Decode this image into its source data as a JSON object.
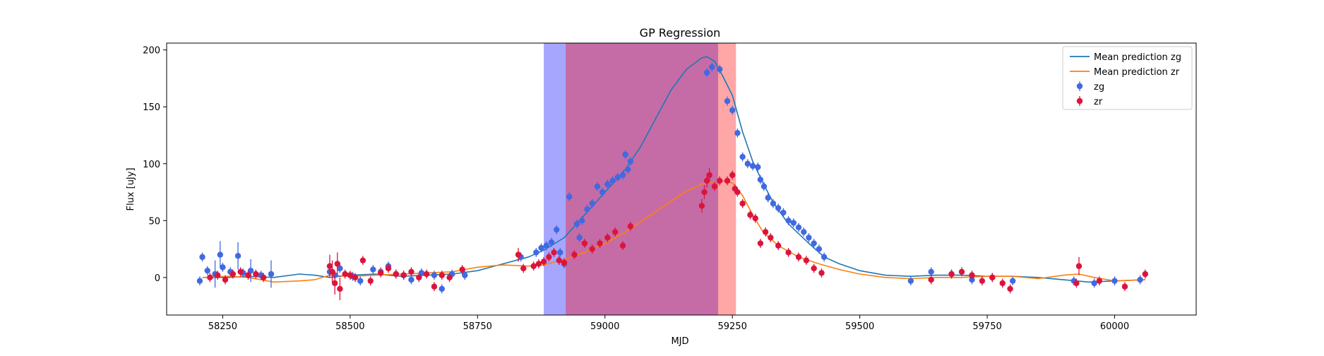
{
  "chart_data": {
    "type": "scatter",
    "title": "GP Regression",
    "xlabel": "MJD",
    "ylabel": "Flux [uJy]",
    "xlim": [
      58140,
      60160
    ],
    "ylim": [
      -33,
      206
    ],
    "xticks": [
      58250,
      58500,
      58750,
      59000,
      59250,
      59500,
      59750,
      60000
    ],
    "yticks": [
      0,
      50,
      100,
      150,
      200
    ],
    "grid": false,
    "legend_position": "top-right",
    "colors": {
      "line_zg": "#1f77b4",
      "line_zr": "#ff7f0e",
      "points_zg": "#4169e1",
      "points_zr": "#dc143c",
      "band_zg": "#0000ff",
      "band_zr": "#ff0000"
    },
    "shaded_regions": [
      {
        "x0": 58880,
        "x1": 59222,
        "color": "#0000ff",
        "opacity": 0.35
      },
      {
        "x0": 58923,
        "x1": 59257,
        "color": "#ff0000",
        "opacity": 0.35
      }
    ],
    "series": [
      {
        "name": "Mean prediction zg",
        "kind": "line",
        "color": "#1f77b4",
        "x": [
          58210,
          58260,
          58300,
          58350,
          58400,
          58430,
          58460,
          58500,
          58550,
          58600,
          58650,
          58700,
          58750,
          58800,
          58850,
          58880,
          58920,
          58950,
          58980,
          59010,
          59040,
          59070,
          59100,
          59130,
          59160,
          59190,
          59200,
          59215,
          59230,
          59250,
          59270,
          59290,
          59310,
          59330,
          59360,
          59400,
          59430,
          59460,
          59500,
          59550,
          59600,
          59650,
          59700,
          59750,
          59800,
          59850,
          59900,
          59950,
          60000,
          60060
        ],
        "y": [
          0,
          0,
          1,
          0,
          3,
          2,
          0,
          2,
          3,
          1,
          2,
          3,
          6,
          12,
          18,
          24,
          35,
          50,
          65,
          80,
          95,
          115,
          140,
          165,
          183,
          193,
          194,
          190,
          178,
          160,
          128,
          102,
          83,
          66,
          47,
          30,
          18,
          12,
          6,
          2,
          1,
          2,
          2,
          1,
          1,
          0,
          -2,
          -4,
          -3,
          -2
        ]
      },
      {
        "name": "Mean prediction zr",
        "kind": "line",
        "color": "#ff7f0e",
        "x": [
          58210,
          58260,
          58300,
          58350,
          58400,
          58430,
          58460,
          58500,
          58550,
          58600,
          58650,
          58700,
          58750,
          58800,
          58850,
          58880,
          58920,
          58960,
          59000,
          59040,
          59080,
          59120,
          59160,
          59190,
          59210,
          59230,
          59250,
          59270,
          59290,
          59310,
          59340,
          59380,
          59420,
          59460,
          59500,
          59550,
          59600,
          59650,
          59700,
          59750,
          59800,
          59850,
          59900,
          59930,
          59960,
          60000,
          60060
        ],
        "y": [
          0,
          1,
          0,
          -4,
          -3,
          -2,
          2,
          1,
          2,
          3,
          4,
          5,
          9,
          11,
          10,
          11,
          16,
          22,
          30,
          40,
          52,
          64,
          76,
          82,
          84,
          85,
          83,
          72,
          55,
          40,
          28,
          18,
          12,
          7,
          3,
          0,
          -1,
          0,
          0,
          1,
          1,
          -1,
          2,
          3,
          0,
          -3,
          -2
        ]
      },
      {
        "name": "zg",
        "kind": "errorbar-scatter",
        "color": "#4169e1",
        "x": [
          58205,
          58210,
          58220,
          58235,
          58245,
          58250,
          58265,
          58280,
          58290,
          58305,
          58325,
          58345,
          58460,
          58470,
          58480,
          58505,
          58520,
          58545,
          58560,
          58575,
          58590,
          58605,
          58620,
          58640,
          58665,
          58680,
          58700,
          58725,
          58835,
          58865,
          58875,
          58885,
          58895,
          58905,
          58912,
          58920,
          58930,
          58945,
          58950,
          58955,
          58965,
          58975,
          58985,
          58995,
          59005,
          59015,
          59025,
          59035,
          59040,
          59045,
          59050,
          59200,
          59210,
          59225,
          59240,
          59250,
          59260,
          59270,
          59280,
          59290,
          59300,
          59305,
          59312,
          59320,
          59330,
          59340,
          59350,
          59360,
          59370,
          59380,
          59390,
          59400,
          59410,
          59420,
          59430,
          59600,
          59640,
          59680,
          59720,
          59760,
          59800,
          59920,
          59960,
          60000,
          60050
        ],
        "y": [
          -3,
          18,
          6,
          3,
          20,
          9,
          5,
          19,
          4,
          6,
          2,
          3,
          5,
          2,
          8,
          1,
          -3,
          7,
          5,
          10,
          3,
          2,
          -2,
          4,
          2,
          -10,
          3,
          2,
          18,
          22,
          26,
          28,
          31,
          42,
          22,
          12,
          71,
          47,
          35,
          50,
          60,
          65,
          80,
          75,
          82,
          85,
          88,
          90,
          108,
          95,
          102,
          180,
          185,
          183,
          155,
          147,
          127,
          106,
          100,
          98,
          97,
          86,
          80,
          70,
          65,
          61,
          57,
          50,
          48,
          44,
          40,
          35,
          30,
          25,
          18,
          -3,
          5,
          3,
          -2,
          0,
          -3,
          -3,
          -5,
          -3,
          -2
        ],
        "err": [
          4,
          4,
          4,
          12,
          12,
          4,
          4,
          12,
          4,
          10,
          4,
          12,
          4,
          4,
          4,
          4,
          4,
          4,
          4,
          4,
          4,
          4,
          4,
          4,
          4,
          4,
          4,
          4,
          4,
          4,
          4,
          4,
          4,
          4,
          4,
          4,
          4,
          4,
          4,
          4,
          4,
          4,
          4,
          4,
          4,
          4,
          4,
          4,
          4,
          4,
          4,
          4,
          4,
          4,
          4,
          4,
          4,
          4,
          4,
          4,
          4,
          4,
          4,
          4,
          4,
          4,
          4,
          4,
          4,
          4,
          4,
          4,
          4,
          4,
          4,
          4,
          4,
          4,
          4,
          4,
          4,
          4,
          4,
          4,
          4
        ]
      },
      {
        "name": "zr",
        "kind": "errorbar-scatter",
        "color": "#dc143c",
        "x": [
          58225,
          58240,
          58255,
          58270,
          58285,
          58300,
          58315,
          58330,
          58460,
          58465,
          58470,
          58475,
          58480,
          58490,
          58500,
          58510,
          58525,
          58540,
          58560,
          58575,
          58590,
          58605,
          58620,
          58635,
          58650,
          58665,
          58680,
          58695,
          58720,
          58830,
          58840,
          58860,
          58870,
          58880,
          58890,
          58900,
          58910,
          58920,
          58940,
          58960,
          58975,
          58990,
          59005,
          59020,
          59035,
          59050,
          59190,
          59195,
          59200,
          59205,
          59215,
          59225,
          59240,
          59250,
          59255,
          59260,
          59270,
          59285,
          59295,
          59305,
          59315,
          59325,
          59340,
          59360,
          59380,
          59395,
          59410,
          59425,
          59640,
          59680,
          59700,
          59720,
          59740,
          59760,
          59780,
          59795,
          59925,
          59930,
          59970,
          60020,
          60060
        ],
        "y": [
          0,
          2,
          -2,
          3,
          5,
          2,
          3,
          0,
          10,
          5,
          -5,
          12,
          -10,
          3,
          2,
          0,
          15,
          -3,
          4,
          8,
          3,
          2,
          5,
          0,
          3,
          -8,
          2,
          0,
          7,
          20,
          8,
          10,
          12,
          14,
          18,
          22,
          15,
          13,
          20,
          30,
          25,
          30,
          35,
          40,
          28,
          45,
          63,
          75,
          85,
          90,
          80,
          85,
          85,
          90,
          78,
          75,
          65,
          55,
          52,
          30,
          40,
          35,
          28,
          22,
          18,
          15,
          8,
          4,
          -2,
          3,
          5,
          2,
          -3,
          0,
          -5,
          -10,
          -5,
          10,
          -3,
          -8,
          3
        ],
        "err": [
          4,
          4,
          4,
          4,
          4,
          4,
          4,
          4,
          10,
          10,
          10,
          10,
          10,
          4,
          4,
          4,
          4,
          4,
          4,
          4,
          4,
          4,
          4,
          4,
          4,
          4,
          4,
          4,
          4,
          6,
          4,
          4,
          4,
          4,
          4,
          4,
          4,
          4,
          4,
          4,
          4,
          4,
          4,
          4,
          4,
          4,
          6,
          6,
          6,
          6,
          4,
          4,
          4,
          4,
          4,
          4,
          4,
          4,
          4,
          4,
          4,
          4,
          4,
          4,
          4,
          4,
          4,
          4,
          4,
          4,
          4,
          4,
          4,
          4,
          4,
          4,
          4,
          8,
          4,
          4,
          4
        ]
      }
    ]
  }
}
